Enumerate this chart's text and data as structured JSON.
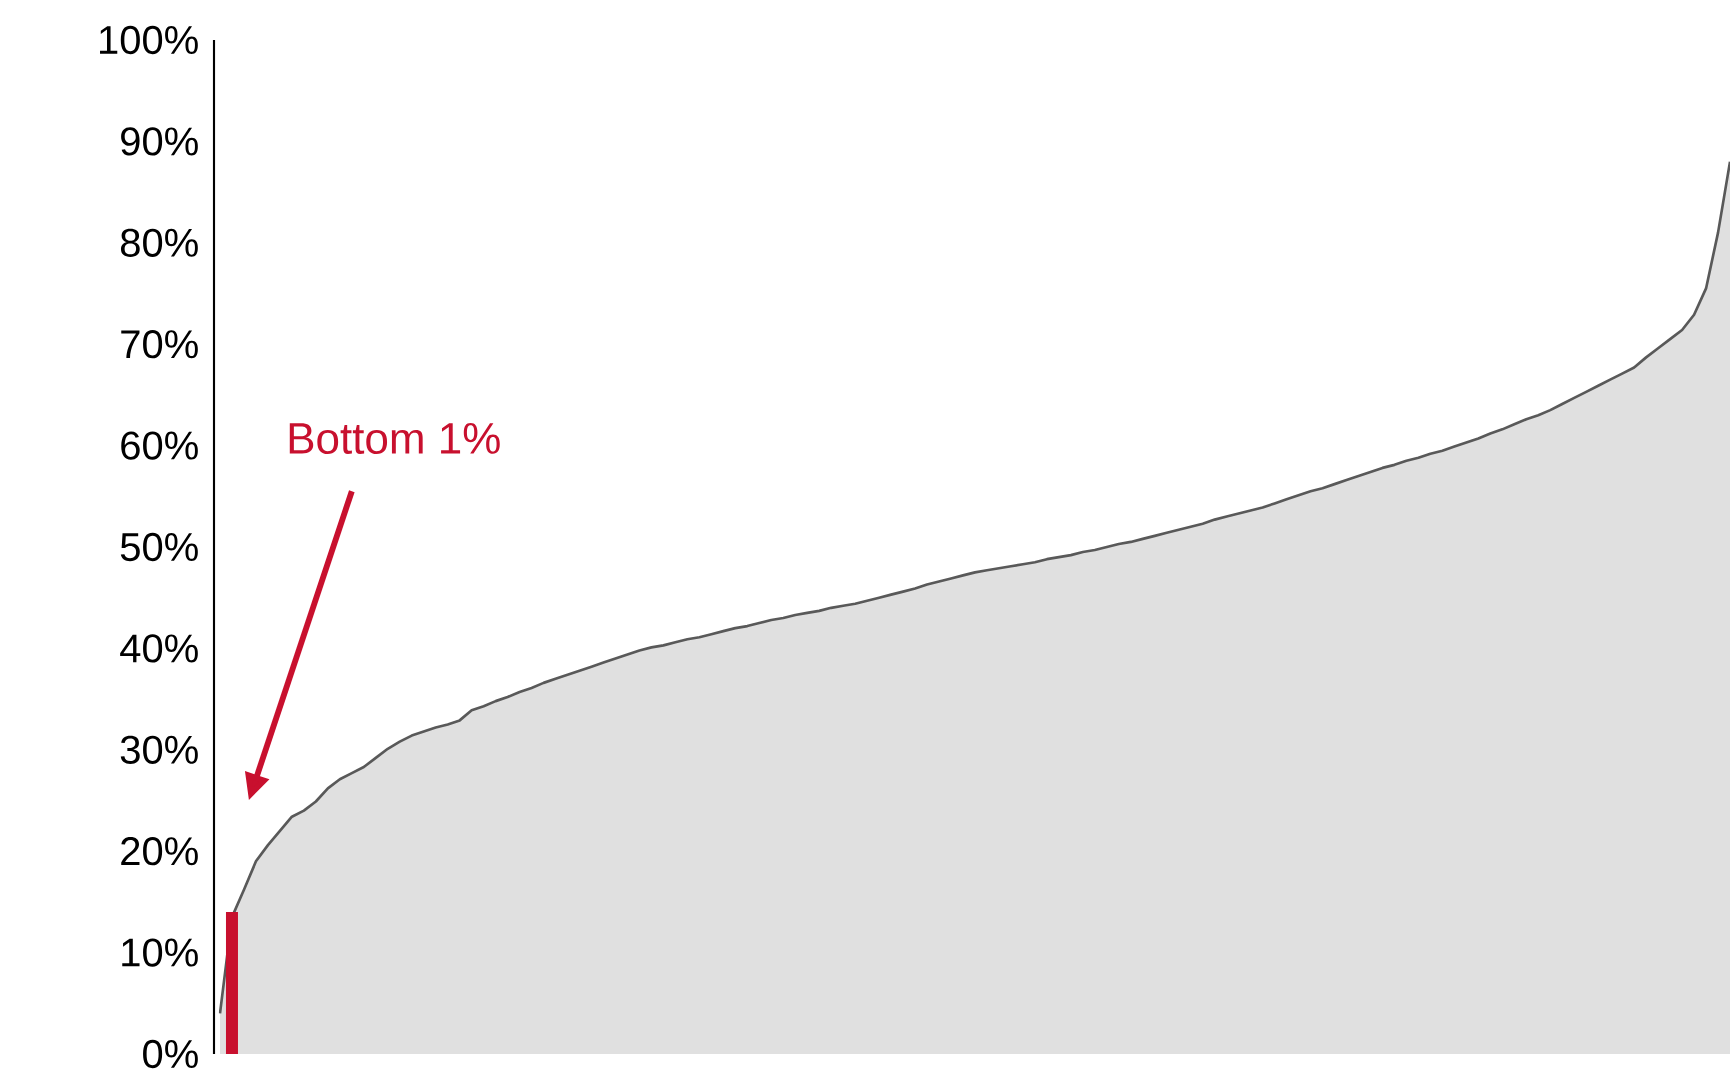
{
  "chart_data": {
    "type": "area",
    "categories": [
      null,
      null,
      null,
      null,
      null,
      null,
      null,
      null,
      null,
      null,
      null,
      null,
      null,
      null,
      null,
      null,
      null,
      null,
      null,
      null,
      null,
      null,
      null,
      null,
      null,
      null,
      null,
      null,
      null,
      null,
      null,
      null,
      null,
      null,
      null,
      null,
      null,
      null,
      null,
      null,
      null,
      null,
      null,
      null,
      null,
      null,
      null,
      null,
      null,
      null,
      null,
      null,
      null,
      null,
      null,
      null,
      null,
      null,
      null,
      null,
      null,
      null,
      null,
      null,
      null,
      null,
      null,
      null,
      null,
      null,
      null,
      null,
      null,
      null,
      null,
      null,
      null,
      null,
      null,
      null,
      null,
      null,
      null,
      null,
      null,
      null,
      null,
      null,
      null,
      null,
      null,
      null,
      null,
      null,
      null,
      null,
      null,
      null,
      null,
      null,
      null,
      null,
      null,
      null,
      null,
      null,
      null,
      null,
      null,
      null,
      null,
      null,
      null,
      null,
      null,
      null,
      null,
      null,
      null,
      null,
      null,
      null,
      null,
      null,
      null,
      null,
      null
    ],
    "series": [
      {
        "color": "#e0e0e0",
        "values": [
          4,
          13.5,
          16.2,
          19,
          20.6,
          22,
          23.4,
          24,
          24.9,
          26.2,
          27.1,
          27.7,
          28.3,
          29.2,
          30.1,
          30.8,
          31.4,
          31.8,
          32.2,
          32.5,
          32.9,
          33.9,
          34.3,
          34.8,
          35.2,
          35.7,
          36.1,
          36.6,
          37.0,
          37.4,
          37.8,
          38.2,
          38.6,
          39.0,
          39.4,
          39.8,
          40.1,
          40.3,
          40.6,
          40.9,
          41.1,
          41.4,
          41.7,
          42.0,
          42.2,
          42.5,
          42.8,
          43.0,
          43.3,
          43.5,
          43.7,
          44.0,
          44.2,
          44.4,
          44.7,
          45.0,
          45.3,
          45.6,
          45.9,
          46.3,
          46.6,
          46.9,
          47.2,
          47.5,
          47.7,
          47.9,
          48.1,
          48.3,
          48.5,
          48.8,
          49.0,
          49.2,
          49.5,
          49.7,
          50.0,
          50.3,
          50.5,
          50.8,
          51.1,
          51.4,
          51.7,
          52.0,
          52.3,
          52.7,
          53.0,
          53.3,
          53.6,
          53.9,
          54.3,
          54.7,
          55.1,
          55.5,
          55.8,
          56.2,
          56.6,
          57.0,
          57.4,
          57.8,
          58.1,
          58.5,
          58.8,
          59.2,
          59.5,
          59.9,
          60.3,
          60.7,
          61.2,
          61.6,
          62.1,
          62.6,
          63.0,
          63.5,
          64.1,
          64.7,
          65.3,
          65.9,
          66.5,
          67.1,
          67.7,
          68.7,
          69.6,
          70.5,
          71.4,
          72.9,
          75.5,
          81,
          88
        ]
      },
      {
        "type": "bar",
        "color": "#c8102e",
        "values": [
          null,
          14,
          null,
          null,
          null,
          null,
          null,
          null,
          null,
          null,
          null,
          null,
          null,
          null,
          null,
          null,
          null,
          null,
          null,
          null,
          null,
          null,
          null,
          null,
          null,
          null,
          null,
          null,
          null,
          null,
          null,
          null,
          null,
          null,
          null,
          null,
          null,
          null,
          null,
          null,
          null,
          null,
          null,
          null,
          null,
          null,
          null,
          null,
          null,
          null,
          null,
          null,
          null,
          null,
          null,
          null,
          null,
          null,
          null,
          null,
          null,
          null,
          null,
          null,
          null,
          null,
          null,
          null,
          null,
          null,
          null,
          null,
          null,
          null,
          null,
          null,
          null,
          null,
          null,
          null,
          null,
          null,
          null,
          null,
          null,
          null,
          null,
          null,
          null,
          null,
          null,
          null,
          null,
          null,
          null,
          null,
          null,
          null,
          null,
          null,
          null,
          null,
          null,
          null,
          null,
          null,
          null,
          null,
          null,
          null,
          null,
          null,
          null,
          null,
          null,
          null,
          null,
          null,
          null,
          null,
          null,
          null,
          null,
          null,
          null,
          null,
          null
        ]
      }
    ],
    "ylim": [
      0,
      100
    ],
    "yticks": [
      {
        "value": 0,
        "label": "0%"
      },
      {
        "value": 10,
        "label": "10%"
      },
      {
        "value": 20,
        "label": "20%"
      },
      {
        "value": 30,
        "label": "30%"
      },
      {
        "value": 40,
        "label": "40%"
      },
      {
        "value": 50,
        "label": "50%"
      },
      {
        "value": 60,
        "label": "60%"
      },
      {
        "value": 70,
        "label": "70%"
      },
      {
        "value": 80,
        "label": "80%"
      },
      {
        "value": 90,
        "label": "90%"
      },
      {
        "value": 100,
        "label": "100%"
      }
    ],
    "annotations": [
      "Bottom 1%"
    ]
  }
}
